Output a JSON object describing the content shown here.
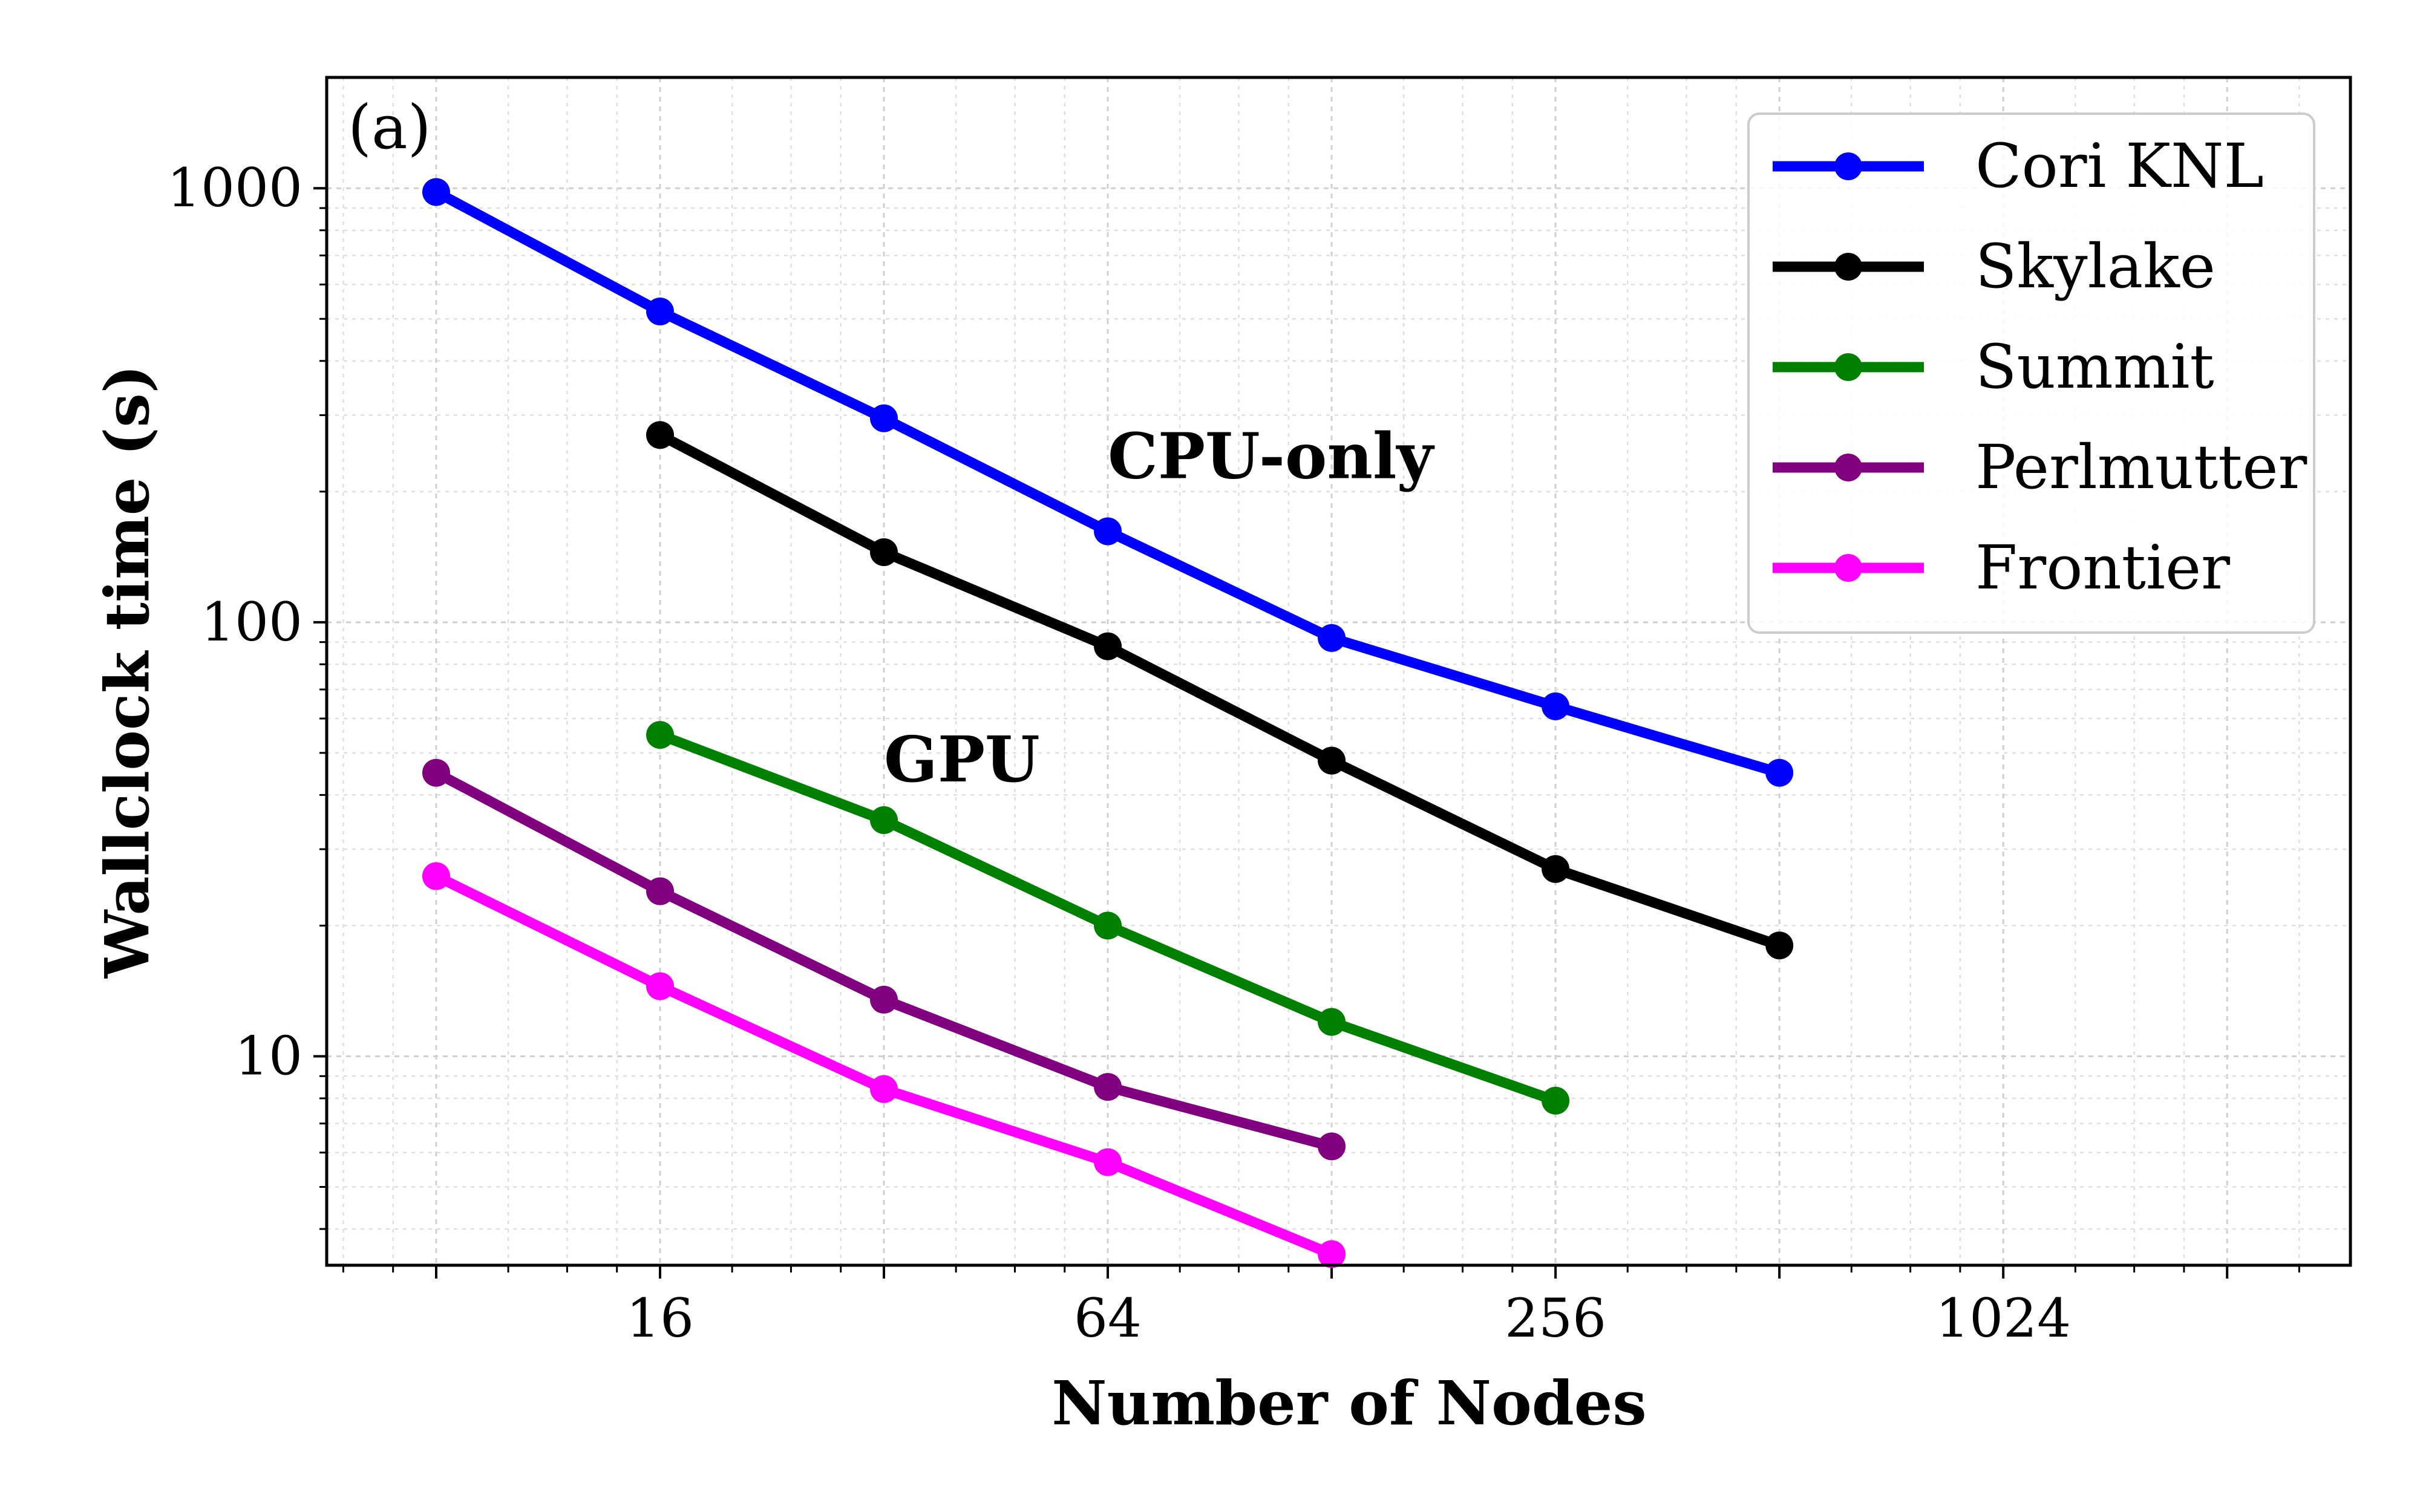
{
  "chart_data": {
    "type": "line",
    "panel_label": "(a)",
    "xlabel": "Number of Nodes",
    "ylabel": "Wallclock time (s)",
    "xscale": "log2",
    "yscale": "log10",
    "xlim": [
      5.7,
      3000
    ],
    "ylim": [
      3.3,
      1800
    ],
    "x_ticks": [
      16,
      64,
      256,
      1024
    ],
    "x_tick_labels": [
      "16",
      "64",
      "256",
      "1024"
    ],
    "y_ticks": [
      10,
      100,
      1000
    ],
    "y_tick_labels": [
      "10",
      "100",
      "1000"
    ],
    "grid": true,
    "legend_position": "top-right",
    "series": [
      {
        "name": "Cori KNL",
        "color": "#0000ff",
        "x": [
          8,
          16,
          32,
          64,
          128,
          256,
          512
        ],
        "y": [
          980,
          520,
          295,
          162,
          92,
          64,
          45
        ]
      },
      {
        "name": "Skylake",
        "color": "#000000",
        "x": [
          16,
          32,
          64,
          128,
          256,
          512
        ],
        "y": [
          270,
          145,
          88,
          48,
          27,
          18
        ]
      },
      {
        "name": "Summit",
        "color": "#008000",
        "x": [
          16,
          32,
          64,
          128,
          256
        ],
        "y": [
          55,
          35,
          20,
          12,
          7.9
        ]
      },
      {
        "name": "Perlmutter",
        "color": "#800080",
        "x": [
          8,
          16,
          32,
          64,
          128
        ],
        "y": [
          45,
          24,
          13.5,
          8.5,
          6.2
        ]
      },
      {
        "name": "Frontier",
        "color": "#ff00ff",
        "x": [
          8,
          16,
          32,
          64,
          128
        ],
        "y": [
          26,
          14.5,
          8.4,
          5.7,
          3.5
        ]
      }
    ],
    "annotations": [
      {
        "text": "CPU-only",
        "x": 64,
        "y": 215
      },
      {
        "text": "GPU",
        "x": 32,
        "y": 43
      }
    ]
  }
}
